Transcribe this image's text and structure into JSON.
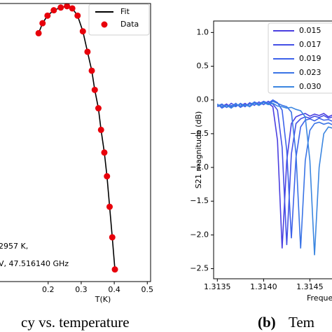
{
  "chart_data": [
    {
      "type": "line",
      "xlabel": "T(K)",
      "annotations": [
        "2957 K,",
        "V, 47.516140 GHz"
      ],
      "caption": "cy vs. temperature",
      "x": [
        0.171,
        0.183,
        0.198,
        0.217,
        0.238,
        0.257,
        0.273,
        0.289,
        0.305,
        0.319,
        0.332,
        0.341,
        0.352,
        0.36,
        0.37,
        0.378,
        0.386,
        0.394,
        0.402
      ],
      "series": [
        {
          "name": "Fit",
          "color": "#000000",
          "style": "line",
          "values": [
            0.9,
            0.937,
            0.965,
            0.985,
            0.995,
            1.0,
            0.992,
            0.965,
            0.907,
            0.831,
            0.761,
            0.69,
            0.622,
            0.542,
            0.458,
            0.37,
            0.257,
            0.144,
            0.025
          ]
        },
        {
          "name": "Data",
          "color": "#e8000b",
          "style": "scatter",
          "values": [
            0.9,
            0.937,
            0.965,
            0.985,
            0.995,
            1.0,
            0.992,
            0.965,
            0.907,
            0.831,
            0.761,
            0.69,
            0.622,
            0.542,
            0.458,
            0.37,
            0.257,
            0.144,
            0.025
          ]
        }
      ],
      "xlim": [
        0.033,
        0.51
      ],
      "ylim": [
        -0.02,
        1.01
      ],
      "xticks": [
        0.2,
        0.3,
        0.4,
        0.5
      ],
      "legend": "upper right"
    },
    {
      "type": "line",
      "ylabel": "S21 magnitude (dB)",
      "xlabel": "Freque",
      "caption_label": "(b)",
      "caption": "Tem",
      "x": [
        1.3135,
        1.31355,
        1.3136,
        1.31365,
        1.3137,
        1.31375,
        1.3138,
        1.31385,
        1.3139,
        1.31395,
        1.314,
        1.31405,
        1.3141,
        1.31415,
        1.3142,
        1.31425,
        1.3143,
        1.31435,
        1.3144,
        1.31445,
        1.3145,
        1.31455,
        1.3146,
        1.31465,
        1.3147,
        1.31475,
        1.3148,
        1.31485
      ],
      "series": [
        {
          "name": "0.015",
          "color": "#4a3ee0",
          "values": [
            -0.08,
            -0.1,
            -0.06,
            -0.12,
            -0.07,
            -0.09,
            -0.05,
            -0.1,
            -0.04,
            -0.08,
            -0.03,
            -0.05,
            -0.1,
            -0.6,
            -2.2,
            -0.9,
            -0.35,
            -0.25,
            -0.22,
            -0.2,
            -0.24,
            -0.21,
            -0.23,
            -0.2,
            -0.25,
            -0.22,
            -0.24,
            -0.21
          ]
        },
        {
          "name": "0.017",
          "color": "#4450e6",
          "values": [
            -0.1,
            -0.07,
            -0.11,
            -0.05,
            -0.09,
            -0.06,
            -0.1,
            -0.04,
            -0.08,
            -0.03,
            -0.07,
            -0.02,
            -0.06,
            -0.15,
            -0.7,
            -2.15,
            -0.8,
            -0.35,
            -0.28,
            -0.25,
            -0.27,
            -0.24,
            -0.26,
            -0.23,
            -0.27,
            -0.25,
            -0.24,
            -0.26
          ]
        },
        {
          "name": "0.019",
          "color": "#3d62ea",
          "values": [
            -0.06,
            -0.12,
            -0.08,
            -0.1,
            -0.05,
            -0.11,
            -0.07,
            -0.09,
            -0.03,
            -0.06,
            -0.02,
            -0.05,
            0.0,
            -0.04,
            -0.15,
            -0.75,
            -2.05,
            -0.85,
            -0.4,
            -0.3,
            -0.28,
            -0.31,
            -0.27,
            -0.3,
            -0.29,
            -0.32,
            -0.28,
            -0.3
          ]
        },
        {
          "name": "0.023",
          "color": "#3a74e6",
          "values": [
            -0.09,
            -0.06,
            -0.11,
            -0.08,
            -0.1,
            -0.05,
            -0.09,
            -0.06,
            -0.04,
            -0.07,
            -0.03,
            -0.06,
            -0.02,
            -0.05,
            -0.08,
            -0.1,
            -0.18,
            -0.8,
            -2.2,
            -0.9,
            -0.45,
            -0.35,
            -0.33,
            -0.36,
            -0.34,
            -0.37,
            -0.35,
            -0.36
          ]
        },
        {
          "name": "0.030",
          "color": "#3b86e0",
          "values": [
            -0.07,
            -0.1,
            -0.08,
            -0.12,
            -0.06,
            -0.09,
            -0.07,
            -0.1,
            -0.05,
            -0.08,
            -0.04,
            -0.07,
            -0.05,
            -0.09,
            -0.1,
            -0.12,
            -0.11,
            -0.14,
            -0.16,
            -0.25,
            -0.9,
            -2.3,
            -1.0,
            -0.5,
            -0.4,
            -0.42,
            -0.4,
            -0.43
          ]
        }
      ],
      "xlim": [
        1.31346,
        1.31486
      ],
      "ylim": [
        -2.65,
        1.17
      ],
      "xticks": [
        1.3135,
        {
          "value": 1.314,
          "label": "1.3140"
        },
        1.3145
      ],
      "yticks": [
        {
          "value": 1,
          "label": "1.0"
        },
        {
          "value": 0.5,
          "label": "0.5"
        },
        {
          "value": 0,
          "label": "0.0"
        },
        {
          "value": -0.5,
          "label": "−0.5"
        },
        {
          "value": -1,
          "label": "−1.0"
        },
        {
          "value": -1.5,
          "label": "−1.5"
        },
        {
          "value": -2,
          "label": "−2.0"
        },
        {
          "value": -2.5,
          "label": "−2.5"
        }
      ],
      "legend": "upper right"
    }
  ]
}
